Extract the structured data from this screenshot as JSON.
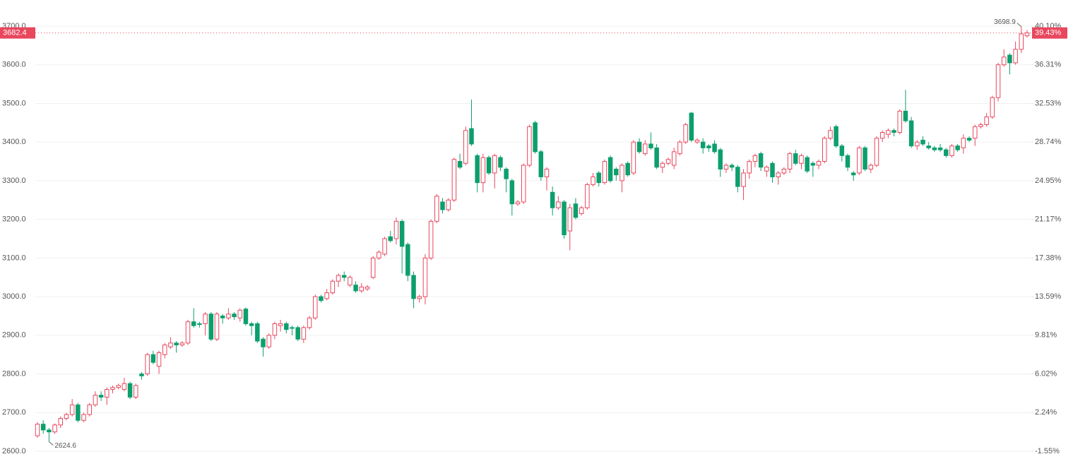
{
  "chart_data": {
    "type": "candlestick",
    "up_color": "#e8475d",
    "down_color": "#0c9f6e",
    "grid": true,
    "ylim": [
      2600,
      3700
    ],
    "yticks": [
      {
        "value": 2600,
        "label": "2600.0"
      },
      {
        "value": 2700,
        "label": "2700.0"
      },
      {
        "value": 2800,
        "label": "2800.0"
      },
      {
        "value": 2900,
        "label": "2900.0"
      },
      {
        "value": 3000,
        "label": "3000.0"
      },
      {
        "value": 3100,
        "label": "3100.0"
      },
      {
        "value": 3200,
        "label": "3200.0"
      },
      {
        "value": 3300,
        "label": "3300.0"
      },
      {
        "value": 3400,
        "label": "3400.0"
      },
      {
        "value": 3500,
        "label": "3500.0"
      },
      {
        "value": 3600,
        "label": "3600.0"
      },
      {
        "value": 3700,
        "label": "3700.0"
      }
    ],
    "y2lim": [
      -1.55,
      40.1
    ],
    "y2ticks": [
      {
        "value": -1.55,
        "label": "-1.55%"
      },
      {
        "value": 2.24,
        "label": "2.24%"
      },
      {
        "value": 6.02,
        "label": "6.02%"
      },
      {
        "value": 9.81,
        "label": "9.81%"
      },
      {
        "value": 13.59,
        "label": "13.59%"
      },
      {
        "value": 17.38,
        "label": "17.38%"
      },
      {
        "value": 21.17,
        "label": "21.17%"
      },
      {
        "value": 24.95,
        "label": "24.95%"
      },
      {
        "value": 28.74,
        "label": "28.74%"
      },
      {
        "value": 32.53,
        "label": "32.53%"
      },
      {
        "value": 36.31,
        "label": "36.31%"
      },
      {
        "value": 40.1,
        "label": "40.10%"
      }
    ],
    "last_price": 3682.4,
    "last_change": {
      "value": 39.43,
      "label": "39.43%"
    },
    "max_label": 3698.9,
    "min_label": 2624.6,
    "open": [
      2640,
      2670,
      2655,
      2650,
      2668,
      2685,
      2695,
      2720,
      2680,
      2695,
      2720,
      2745,
      2740,
      2760,
      2765,
      2760,
      2775,
      2740,
      2800,
      2800,
      2850,
      2820,
      2850,
      2870,
      2880,
      2875,
      2880,
      2935,
      2930,
      2930,
      2955,
      2890,
      2950,
      2945,
      2955,
      2945,
      2968,
      2930,
      2930,
      2890,
      2870,
      2900,
      2925,
      2930,
      2920,
      2920,
      2890,
      2920,
      2945,
      3000,
      2995,
      3010,
      3040,
      3055,
      3030,
      3030,
      3015,
      3020,
      3050,
      3100,
      3110,
      3155,
      3150,
      3195,
      3135,
      3055,
      2995,
      3000,
      3100,
      3195,
      3245,
      3225,
      3250,
      3350,
      3345,
      3435,
      3365,
      3295,
      3360,
      3320,
      3360,
      3330,
      3300,
      3240,
      3245,
      3340,
      3450,
      3375,
      3310,
      3270,
      3230,
      3245,
      3170,
      3240,
      3215,
      3230,
      3290,
      3320,
      3295,
      3360,
      3330,
      3300,
      3345,
      3320,
      3400,
      3370,
      3395,
      3385,
      3335,
      3345,
      3340,
      3370,
      3400,
      3475,
      3400,
      3400,
      3390,
      3395,
      3380,
      3330,
      3340,
      3335,
      3285,
      3320,
      3350,
      3370,
      3325,
      3345,
      3310,
      3320,
      3330,
      3370,
      3345,
      3360,
      3345,
      3340,
      3350,
      3410,
      3440,
      3390,
      3365,
      3320,
      3320,
      3385,
      3330,
      3340,
      3410,
      3420,
      3430,
      3425,
      3480,
      3455,
      3390,
      3405,
      3390,
      3385,
      3385,
      3380,
      3365,
      3390,
      3385,
      3410,
      3410,
      3440,
      3445,
      3465,
      3515,
      3600,
      3625,
      3605,
      3640,
      3675
    ],
    "high": [
      2675,
      2680,
      2660,
      2672,
      2690,
      2700,
      2735,
      2725,
      2700,
      2725,
      2755,
      2755,
      2765,
      2770,
      2775,
      2790,
      2780,
      2775,
      2805,
      2855,
      2860,
      2860,
      2880,
      2895,
      2885,
      2885,
      2940,
      2970,
      2935,
      2960,
      2960,
      2960,
      2955,
      2970,
      2960,
      2970,
      2972,
      2935,
      2935,
      2895,
      2905,
      2935,
      2940,
      2935,
      2925,
      2925,
      2925,
      2950,
      3005,
      3005,
      3020,
      3045,
      3060,
      3065,
      3055,
      3040,
      3035,
      3030,
      3105,
      3120,
      3155,
      3170,
      3205,
      3200,
      3140,
      3065,
      3005,
      3110,
      3200,
      3265,
      3255,
      3255,
      3360,
      3370,
      3440,
      3510,
      3370,
      3370,
      3365,
      3370,
      3365,
      3335,
      3305,
      3250,
      3345,
      3445,
      3455,
      3380,
      3335,
      3285,
      3260,
      3250,
      3240,
      3255,
      3235,
      3295,
      3320,
      3325,
      3355,
      3365,
      3335,
      3345,
      3350,
      3405,
      3410,
      3405,
      3425,
      3395,
      3350,
      3360,
      3385,
      3405,
      3450,
      3478,
      3410,
      3410,
      3395,
      3405,
      3385,
      3345,
      3345,
      3340,
      3330,
      3355,
      3370,
      3375,
      3340,
      3350,
      3325,
      3335,
      3375,
      3380,
      3370,
      3365,
      3350,
      3355,
      3415,
      3440,
      3445,
      3395,
      3370,
      3325,
      3390,
      3390,
      3345,
      3415,
      3430,
      3435,
      3435,
      3485,
      3535,
      3465,
      3405,
      3415,
      3400,
      3390,
      3395,
      3385,
      3395,
      3395,
      3420,
      3415,
      3445,
      3450,
      3475,
      3520,
      3605,
      3640,
      3630,
      3660,
      3698.9,
      3690
    ],
    "low": [
      2635,
      2645,
      2624.6,
      2645,
      2660,
      2680,
      2690,
      2675,
      2675,
      2690,
      2715,
      2730,
      2720,
      2750,
      2760,
      2755,
      2735,
      2735,
      2785,
      2795,
      2825,
      2800,
      2840,
      2865,
      2855,
      2870,
      2875,
      2920,
      2920,
      2900,
      2885,
      2885,
      2930,
      2940,
      2940,
      2935,
      2925,
      2900,
      2880,
      2845,
      2865,
      2890,
      2910,
      2905,
      2900,
      2885,
      2880,
      2915,
      2940,
      2985,
      2990,
      3005,
      3025,
      3040,
      3025,
      3010,
      3010,
      3015,
      3045,
      3095,
      3105,
      3140,
      3135,
      3060,
      3040,
      2970,
      2985,
      2980,
      3095,
      3190,
      3215,
      3220,
      3245,
      3330,
      3340,
      3390,
      3270,
      3270,
      3315,
      3280,
      3325,
      3270,
      3210,
      3235,
      3240,
      3335,
      3370,
      3300,
      3275,
      3210,
      3225,
      3150,
      3120,
      3200,
      3210,
      3225,
      3285,
      3285,
      3290,
      3295,
      3300,
      3270,
      3310,
      3315,
      3370,
      3365,
      3380,
      3330,
      3320,
      3340,
      3330,
      3365,
      3395,
      3400,
      3395,
      3370,
      3375,
      3370,
      3310,
      3320,
      3325,
      3270,
      3250,
      3305,
      3335,
      3325,
      3310,
      3295,
      3290,
      3315,
      3320,
      3340,
      3330,
      3320,
      3310,
      3330,
      3345,
      3405,
      3385,
      3350,
      3325,
      3300,
      3315,
      3325,
      3320,
      3335,
      3400,
      3410,
      3415,
      3420,
      3450,
      3385,
      3380,
      3390,
      3380,
      3375,
      3375,
      3360,
      3360,
      3375,
      3370,
      3400,
      3390,
      3435,
      3440,
      3460,
      3505,
      3595,
      3575,
      3600,
      3630,
      3670
    ],
    "close": [
      2670,
      2655,
      2650,
      2668,
      2685,
      2695,
      2720,
      2680,
      2695,
      2720,
      2745,
      2740,
      2760,
      2765,
      2770,
      2775,
      2740,
      2770,
      2795,
      2850,
      2830,
      2855,
      2875,
      2880,
      2875,
      2880,
      2935,
      2925,
      2928,
      2955,
      2890,
      2955,
      2945,
      2955,
      2948,
      2965,
      2930,
      2925,
      2885,
      2870,
      2900,
      2930,
      2930,
      2915,
      2918,
      2890,
      2920,
      2945,
      3000,
      2990,
      3010,
      3040,
      3055,
      3050,
      3050,
      3015,
      3025,
      3025,
      3100,
      3115,
      3150,
      3145,
      3195,
      3130,
      3055,
      2995,
      3000,
      3100,
      3195,
      3260,
      3225,
      3250,
      3355,
      3335,
      3430,
      3395,
      3295,
      3360,
      3320,
      3365,
      3335,
      3305,
      3240,
      3245,
      3340,
      3440,
      3375,
      3310,
      3330,
      3230,
      3245,
      3160,
      3230,
      3205,
      3230,
      3290,
      3310,
      3295,
      3350,
      3300,
      3315,
      3340,
      3315,
      3400,
      3375,
      3395,
      3385,
      3335,
      3345,
      3355,
      3375,
      3400,
      3445,
      3405,
      3405,
      3385,
      3385,
      3375,
      3330,
      3340,
      3335,
      3285,
      3320,
      3350,
      3365,
      3335,
      3335,
      3310,
      3320,
      3330,
      3370,
      3345,
      3365,
      3325,
      3340,
      3350,
      3410,
      3430,
      3390,
      3365,
      3335,
      3315,
      3385,
      3330,
      3340,
      3410,
      3425,
      3430,
      3425,
      3480,
      3455,
      3390,
      3400,
      3395,
      3385,
      3380,
      3380,
      3365,
      3390,
      3380,
      3410,
      3405,
      3440,
      3445,
      3465,
      3515,
      3600,
      3620,
      3605,
      3640,
      3680,
      3682.4
    ]
  }
}
